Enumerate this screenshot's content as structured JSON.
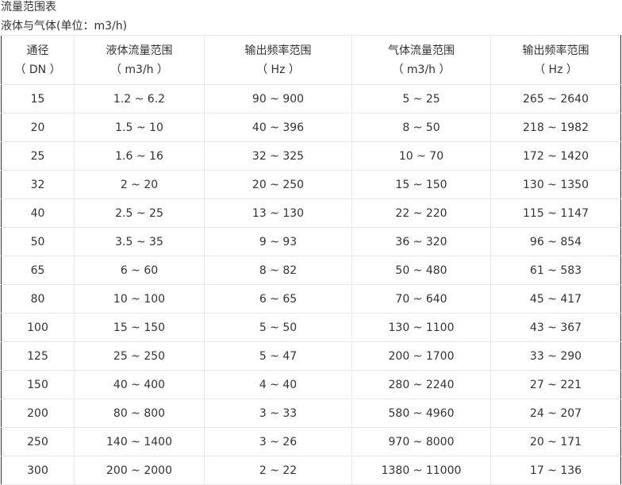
{
  "title": "流量范围表",
  "subtitle": "液体与气体(单位：m3/h)",
  "table": {
    "headers": [
      {
        "line1": "通径",
        "line2": "（ DN ）"
      },
      {
        "line1": "液体流量范围",
        "line2": "（ m3/h ）"
      },
      {
        "line1": "输出频率范围",
        "line2": "（ Hz ）"
      },
      {
        "line1": "气体流量范围",
        "line2": "（ m3/h ）"
      },
      {
        "line1": "输出频率范围",
        "line2": "（ Hz ）"
      }
    ],
    "rows": [
      [
        "15",
        "1.2 ~ 6.2",
        "90 ~ 900",
        "5 ~ 25",
        "265 ~ 2640"
      ],
      [
        "20",
        "1.5 ~ 10",
        "40 ~ 396",
        "8 ~ 50",
        "218 ~ 1982"
      ],
      [
        "25",
        "1.6 ~ 16",
        "32 ~ 325",
        "10 ~ 70",
        "172 ~ 1420"
      ],
      [
        "32",
        "2 ~ 20",
        "20 ~ 250",
        "15 ~ 150",
        "130 ~ 1350"
      ],
      [
        "40",
        "2.5 ~ 25",
        "13 ~ 130",
        "22 ~ 220",
        "115 ~ 1147"
      ],
      [
        "50",
        "3.5 ~ 35",
        "9 ~ 93",
        "36 ~ 320",
        "96 ~ 854"
      ],
      [
        "65",
        "6 ~ 60",
        "8 ~ 82",
        "50 ~ 480",
        "61 ~ 583"
      ],
      [
        "80",
        "10 ~ 100",
        "6 ~ 65",
        "70 ~ 640",
        "45 ~ 417"
      ],
      [
        "100",
        "15 ~ 150",
        "5 ~ 50",
        "130 ~ 1100",
        "43 ~ 367"
      ],
      [
        "125",
        "25 ~ 250",
        "5 ~ 47",
        "200 ~ 1700",
        "33 ~ 290"
      ],
      [
        "150",
        "40 ~ 400",
        "4 ~ 40",
        "280 ~ 2240",
        "27 ~ 221"
      ],
      [
        "200",
        "80 ~ 800",
        "3 ~ 33",
        "580 ~ 4960",
        "24 ~ 207"
      ],
      [
        "250",
        "140 ~ 1400",
        "3 ~ 26",
        "970 ~ 8000",
        "20 ~ 171"
      ],
      [
        "300",
        "200 ~ 2000",
        "2 ~ 22",
        "1380 ~ 11000",
        "17 ~ 136"
      ]
    ]
  }
}
